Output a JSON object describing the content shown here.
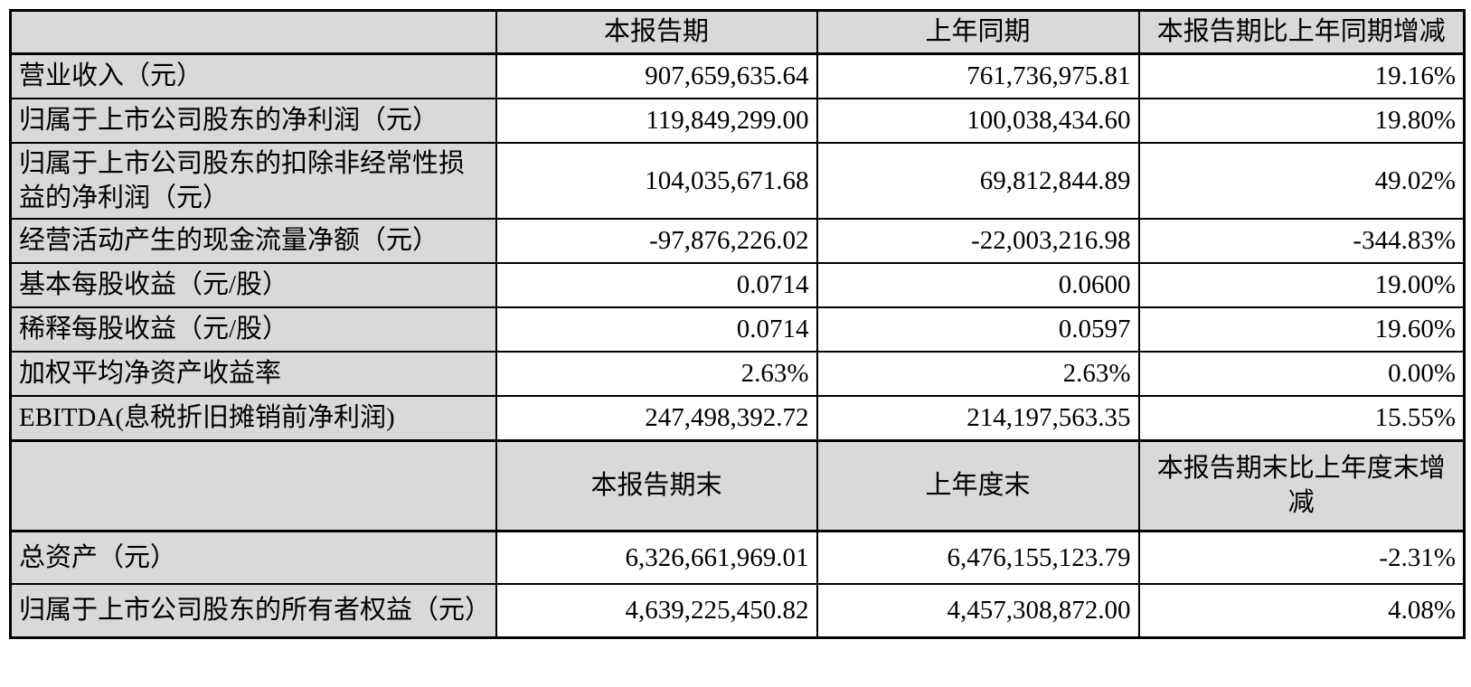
{
  "colors": {
    "shaded_cell_bg": "#d9d9d9",
    "data_cell_bg": "#ffffff",
    "border": "#000000",
    "text": "#000000"
  },
  "table": {
    "sections": [
      {
        "columns": [
          "",
          "本报告期",
          "上年同期",
          "本报告期比上年同期增减"
        ],
        "rows": [
          [
            "营业收入（元）",
            "907,659,635.64",
            "761,736,975.81",
            "19.16%"
          ],
          [
            "归属于上市公司股东的净利润（元）",
            "119,849,299.00",
            "100,038,434.60",
            "19.80%"
          ],
          [
            "归属于上市公司股东的扣除非经常性损益的净利润（元）",
            "104,035,671.68",
            "69,812,844.89",
            "49.02%"
          ],
          [
            "经营活动产生的现金流量净额（元）",
            "-97,876,226.02",
            "-22,003,216.98",
            "-344.83%"
          ],
          [
            "基本每股收益（元/股）",
            "0.0714",
            "0.0600",
            "19.00%"
          ],
          [
            "稀释每股收益（元/股）",
            "0.0714",
            "0.0597",
            "19.60%"
          ],
          [
            "加权平均净资产收益率",
            "2.63%",
            "2.63%",
            "0.00%"
          ],
          [
            "EBITDA(息税折旧摊销前净利润)",
            "247,498,392.72",
            "214,197,563.35",
            "15.55%"
          ]
        ]
      },
      {
        "columns": [
          "",
          "本报告期末",
          "上年度末",
          "本报告期末比上年度末增减"
        ],
        "rows": [
          [
            "总资产（元）",
            "6,326,661,969.01",
            "6,476,155,123.79",
            "-2.31%"
          ],
          [
            "归属于上市公司股东的所有者权益（元）",
            "4,639,225,450.82",
            "4,457,308,872.00",
            "4.08%"
          ]
        ]
      }
    ]
  }
}
